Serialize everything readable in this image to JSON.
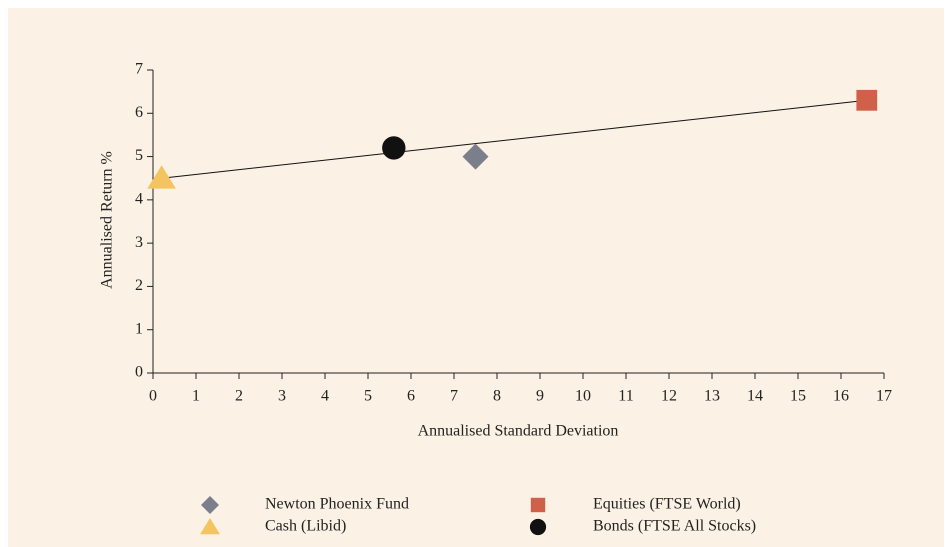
{
  "chart_data": {
    "type": "scatter",
    "xlabel": "Annualised Standard Deviation",
    "ylabel": "Annualised Return %",
    "xlim": [
      0,
      17
    ],
    "xticks": [
      0,
      1,
      2,
      3,
      4,
      5,
      6,
      7,
      8,
      9,
      10,
      11,
      12,
      13,
      14,
      15,
      16,
      17
    ],
    "ylim": [
      0,
      7
    ],
    "yticks": [
      0,
      1,
      2,
      3,
      4,
      5,
      6,
      7
    ],
    "series": [
      {
        "name": "Newton Phoenix Fund",
        "color": "#7b7f8c",
        "marker": "diamond",
        "x": [
          7.5
        ],
        "values": [
          5.0
        ]
      },
      {
        "name": "Equities (FTSE World)",
        "color": "#d0604a",
        "marker": "square",
        "x": [
          16.6
        ],
        "values": [
          6.3
        ]
      },
      {
        "name": "Cash (Libid)",
        "color": "#f3c460",
        "marker": "triangle",
        "x": [
          0.2
        ],
        "values": [
          4.5
        ]
      },
      {
        "name": "Bonds (FTSE All Stocks)",
        "color": "#111111",
        "marker": "circle",
        "x": [
          5.6
        ],
        "values": [
          5.2
        ]
      }
    ],
    "trend_line": {
      "color": "#111111",
      "x": [
        0.2,
        16.6
      ],
      "values": [
        4.5,
        6.3
      ]
    }
  }
}
